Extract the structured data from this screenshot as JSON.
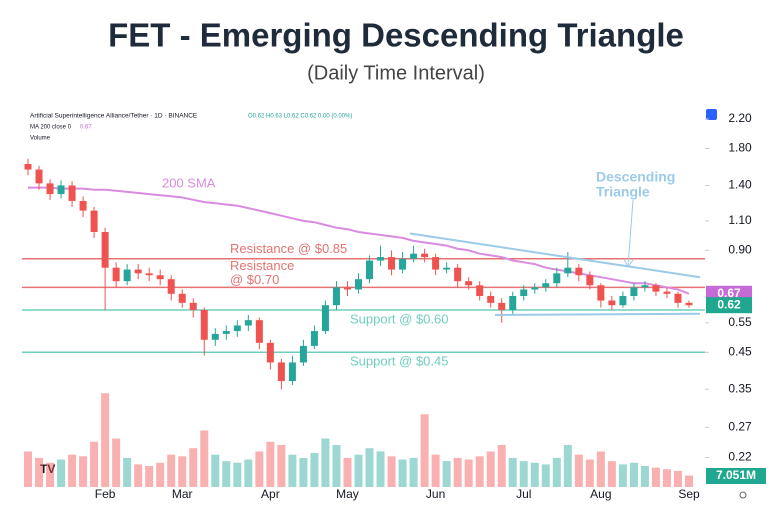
{
  "chart_data": {
    "type": "candlestick",
    "title": "FET - Emerging Descending Triangle",
    "subtitle": "(Daily Time Interval)",
    "header": {
      "symbol": "Artificial Superintelligence Alliance/Tether · 1D · BINANCE",
      "ohlc": "O0.62 H0.63 L0.62 C0.62 0.00 (0.00%)",
      "ma_name": "MA 200 close 0",
      "ma_value": 0.67,
      "volume_name": "Volume"
    },
    "log_scale": true,
    "ylim": [
      0.18,
      2.42
    ],
    "yticks": [
      {
        "value": 2.2,
        "label": "2.20"
      },
      {
        "value": 1.8,
        "label": "1.80"
      },
      {
        "value": 1.4,
        "label": "1.40"
      },
      {
        "value": 1.1,
        "label": "1.10"
      },
      {
        "value": 0.9,
        "label": "0.90"
      },
      0.55,
      0.45,
      0.35,
      0.27,
      0.22
    ],
    "categories": [
      null,
      null,
      null,
      null,
      null,
      null,
      null,
      "Feb",
      null,
      null,
      null,
      null,
      null,
      null,
      "Mar",
      null,
      null,
      null,
      null,
      null,
      null,
      null,
      "Apr",
      null,
      null,
      null,
      null,
      null,
      null,
      "May",
      null,
      null,
      null,
      null,
      null,
      null,
      null,
      "Jun",
      null,
      null,
      null,
      null,
      null,
      null,
      null,
      "Jul",
      null,
      null,
      null,
      null,
      null,
      null,
      "Aug",
      null,
      null,
      null,
      null,
      null,
      null,
      null,
      "Sep"
    ],
    "up_color": "#26a69a",
    "down_color": "#ef5350",
    "candles": {
      "open": [
        1.62,
        1.56,
        1.42,
        1.32,
        1.4,
        1.26,
        1.18,
        1.02,
        0.8,
        0.73,
        0.79,
        0.77,
        0.76,
        0.74,
        0.67,
        0.63,
        0.6,
        0.49,
        0.51,
        0.52,
        0.54,
        0.56,
        0.48,
        0.42,
        0.37,
        0.42,
        0.47,
        0.52,
        0.62,
        0.7,
        0.69,
        0.74,
        0.84,
        0.86,
        0.79,
        0.85,
        0.88,
        0.86,
        0.79,
        0.8,
        0.73,
        0.71,
        0.66,
        0.63,
        0.6,
        0.66,
        0.69,
        0.7,
        0.72,
        0.77,
        0.8,
        0.76,
        0.71,
        0.64,
        0.62,
        0.66,
        0.7,
        0.71,
        0.68,
        0.67,
        0.63
      ],
      "high": [
        1.68,
        1.6,
        1.46,
        1.45,
        1.44,
        1.3,
        1.21,
        1.05,
        0.83,
        0.82,
        0.82,
        0.8,
        0.79,
        0.76,
        0.69,
        0.65,
        0.61,
        0.53,
        0.54,
        0.56,
        0.58,
        0.57,
        0.49,
        0.43,
        0.44,
        0.49,
        0.54,
        0.64,
        0.73,
        0.73,
        0.77,
        0.87,
        0.93,
        0.9,
        0.89,
        0.93,
        0.91,
        0.88,
        0.83,
        0.82,
        0.75,
        0.73,
        0.68,
        0.65,
        0.68,
        0.71,
        0.72,
        0.74,
        0.8,
        0.89,
        0.82,
        0.78,
        0.72,
        0.66,
        0.68,
        0.72,
        0.73,
        0.72,
        0.7,
        0.68,
        0.64
      ],
      "low": [
        1.5,
        1.36,
        1.27,
        1.28,
        1.21,
        1.13,
        0.98,
        0.6,
        0.7,
        0.71,
        0.74,
        0.73,
        0.71,
        0.64,
        0.61,
        0.57,
        0.44,
        0.47,
        0.49,
        0.5,
        0.52,
        0.46,
        0.4,
        0.35,
        0.36,
        0.41,
        0.46,
        0.51,
        0.6,
        0.66,
        0.67,
        0.72,
        0.81,
        0.76,
        0.77,
        0.83,
        0.83,
        0.76,
        0.77,
        0.7,
        0.69,
        0.64,
        0.61,
        0.55,
        0.58,
        0.64,
        0.67,
        0.68,
        0.7,
        0.75,
        0.73,
        0.69,
        0.61,
        0.6,
        0.61,
        0.64,
        0.68,
        0.66,
        0.65,
        0.61,
        0.61
      ],
      "close": [
        1.56,
        1.42,
        1.32,
        1.4,
        1.26,
        1.18,
        1.02,
        0.8,
        0.73,
        0.79,
        0.77,
        0.76,
        0.74,
        0.67,
        0.63,
        0.6,
        0.49,
        0.51,
        0.52,
        0.54,
        0.56,
        0.48,
        0.42,
        0.37,
        0.42,
        0.47,
        0.52,
        0.62,
        0.7,
        0.69,
        0.74,
        0.84,
        0.86,
        0.79,
        0.85,
        0.88,
        0.86,
        0.79,
        0.8,
        0.73,
        0.71,
        0.66,
        0.63,
        0.6,
        0.66,
        0.69,
        0.7,
        0.72,
        0.77,
        0.8,
        0.76,
        0.71,
        0.64,
        0.62,
        0.66,
        0.7,
        0.71,
        0.68,
        0.67,
        0.63,
        0.62
      ]
    },
    "sma": {
      "name": "200 SMA",
      "color": "#d98be0",
      "values": [
        1.38,
        1.38,
        1.38,
        1.37,
        1.37,
        1.37,
        1.36,
        1.36,
        1.35,
        1.34,
        1.33,
        1.32,
        1.31,
        1.3,
        1.29,
        1.27,
        1.25,
        1.24,
        1.23,
        1.22,
        1.2,
        1.18,
        1.16,
        1.14,
        1.12,
        1.1,
        1.09,
        1.07,
        1.05,
        1.04,
        1.02,
        1.01,
        1.0,
        0.99,
        0.98,
        0.96,
        0.95,
        0.94,
        0.93,
        0.91,
        0.9,
        0.88,
        0.87,
        0.86,
        0.84,
        0.83,
        0.82,
        0.8,
        0.79,
        0.78,
        0.77,
        0.76,
        0.75,
        0.74,
        0.73,
        0.72,
        0.72,
        0.71,
        0.7,
        0.69,
        0.67
      ]
    },
    "volume": {
      "vlim": [
        0,
        60
      ],
      "values": [
        22,
        18,
        15,
        17,
        20,
        19,
        28,
        58,
        30,
        18,
        14,
        13,
        15,
        20,
        19,
        24,
        35,
        20,
        16,
        15,
        17,
        22,
        28,
        26,
        20,
        18,
        21,
        30,
        26,
        18,
        20,
        24,
        22,
        19,
        17,
        18,
        45,
        20,
        16,
        18,
        17,
        19,
        22,
        26,
        18,
        16,
        15,
        14,
        18,
        26,
        20,
        17,
        22,
        16,
        14,
        15,
        13,
        12,
        11,
        10,
        7.051
      ]
    },
    "volume_tag": {
      "value": 7.051,
      "label": "7.051M"
    },
    "levels": [
      {
        "value": 0.85,
        "label": [
          "Resistance @ $0.85"
        ],
        "color": "#e57373"
      },
      {
        "value": 0.7,
        "label": [
          "Resistance",
          "@ $0.70"
        ],
        "color": "#e57373"
      },
      {
        "value": 0.6,
        "label": [
          "Support @ $0.60"
        ],
        "color": "#6fcfbf"
      },
      {
        "value": 0.45,
        "label": [
          "Support @ $0.45"
        ],
        "color": "#6fcfbf"
      }
    ],
    "pattern": {
      "label": [
        "Descending",
        "Triangle"
      ],
      "color": "#9ccbe8",
      "trendlines": [
        {
          "values": [
            1.01,
            0.75
          ]
        },
        {
          "values": [
            0.58,
            0.585
          ]
        }
      ]
    },
    "price_tags": [
      {
        "value": 0.67,
        "color": "#c56ad6"
      },
      {
        "value": 0.62,
        "color": "#1fa88f"
      }
    ]
  }
}
